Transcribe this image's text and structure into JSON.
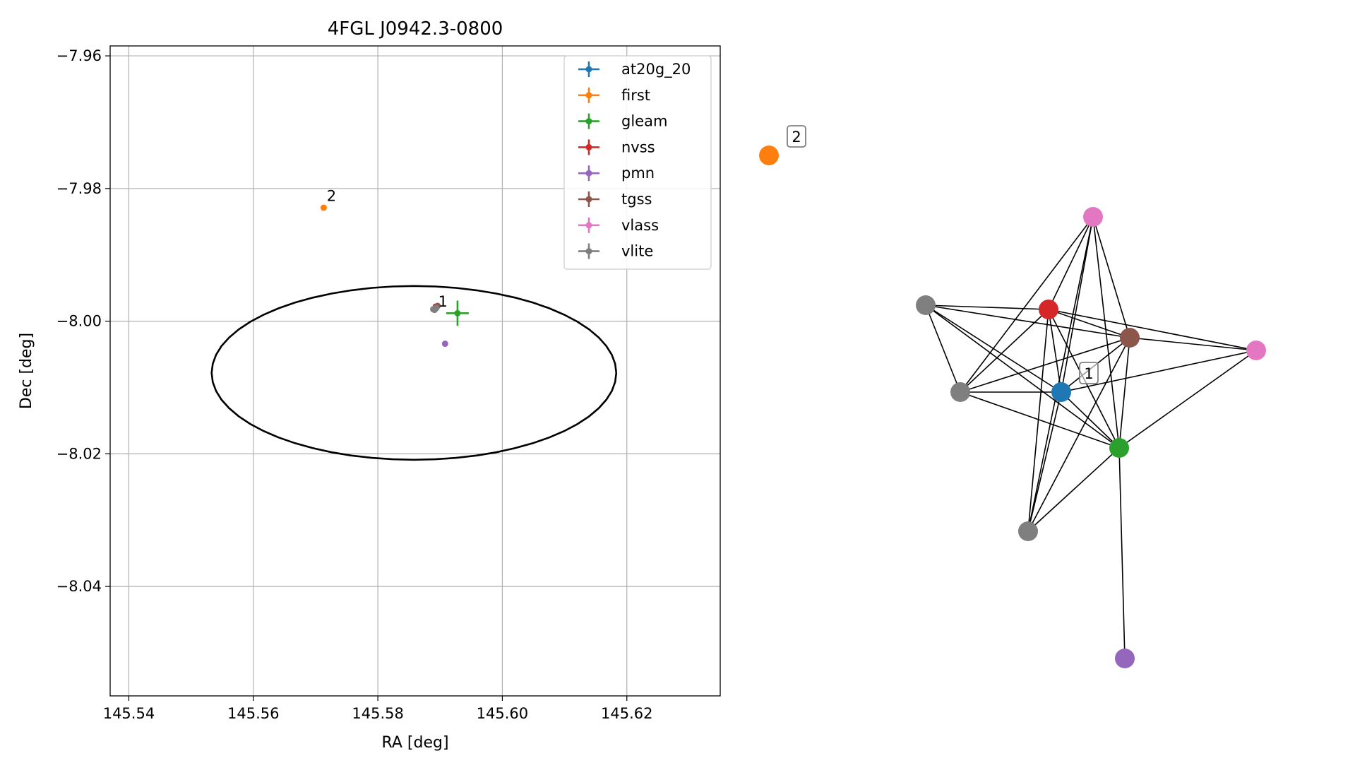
{
  "chart_data": [
    {
      "type": "scatter",
      "title": "4FGL J0942.3-0800",
      "xlabel": "RA [deg]",
      "ylabel": "Dec [deg]",
      "xlim": [
        145.537,
        145.635
      ],
      "ylim": [
        -8.0565,
        -7.9585
      ],
      "xticks": [
        145.54,
        145.56,
        145.58,
        145.6,
        145.62
      ],
      "xtick_labels": [
        "145.54",
        "145.56",
        "145.58",
        "145.60",
        "145.62"
      ],
      "yticks": [
        -7.96,
        -7.98,
        -8.0,
        -8.02,
        -8.04
      ],
      "ytick_labels": [
        "−7.96",
        "−7.98",
        "−8.00",
        "−8.02",
        "−8.04"
      ],
      "grid": true,
      "legend_position": "top-right",
      "localization_ellipse": {
        "center": [
          145.5858,
          -8.0078
        ],
        "ra_semi_axis": 0.0325,
        "dec_semi_axis": 0.0131
      },
      "series": [
        {
          "name": "at20g_20",
          "color": "#1f77b4",
          "points": [
            {
              "x": 145.5893,
              "y": -7.9981,
              "xerr": 0,
              "yerr": 0
            }
          ]
        },
        {
          "name": "first",
          "color": "#ff7f0e",
          "points": [
            {
              "x": 145.5713,
              "y": -7.9829,
              "xerr": 0,
              "yerr": 0
            }
          ]
        },
        {
          "name": "gleam",
          "color": "#2ca02c",
          "points": [
            {
              "x": 145.5928,
              "y": -7.9988,
              "xerr": 0.0018,
              "yerr": 0.0019
            }
          ]
        },
        {
          "name": "nvss",
          "color": "#d62728",
          "points": [
            {
              "x": 145.5893,
              "y": -7.9978,
              "xerr": 0,
              "yerr": 0
            }
          ]
        },
        {
          "name": "pmn",
          "color": "#9467bd",
          "points": [
            {
              "x": 145.5908,
              "y": -8.0034,
              "xerr": 0,
              "yerr": 0
            }
          ]
        },
        {
          "name": "tgss",
          "color": "#8c564b",
          "points": [
            {
              "x": 145.5896,
              "y": -7.9977,
              "xerr": 0,
              "yerr": 0
            }
          ]
        },
        {
          "name": "vlass",
          "color": "#e377c2",
          "points": [
            {
              "x": 145.5892,
              "y": -7.9981,
              "xerr": 0,
              "yerr": 0
            }
          ]
        },
        {
          "name": "vlite",
          "color": "#7f7f7f",
          "points": [
            {
              "x": 145.5889,
              "y": -7.9982,
              "xerr": 0,
              "yerr": 0
            },
            {
              "x": 145.5891,
              "y": -7.9983,
              "xerr": 0,
              "yerr": 0
            },
            {
              "x": 145.5894,
              "y": -7.998,
              "xerr": 0,
              "yerr": 0
            }
          ]
        }
      ],
      "annotations": [
        {
          "text": "1",
          "x": 145.5897,
          "y": -7.9978
        },
        {
          "text": "2",
          "x": 145.5718,
          "y": -7.9819
        }
      ]
    },
    {
      "type": "network",
      "nodes": [
        {
          "id": "n0",
          "color": "#ff7f0e"
        },
        {
          "id": "n1",
          "color": "#e377c2"
        },
        {
          "id": "n2",
          "color": "#7f7f7f"
        },
        {
          "id": "n3",
          "color": "#d62728"
        },
        {
          "id": "n4",
          "color": "#8c564b"
        },
        {
          "id": "n5",
          "color": "#e377c2"
        },
        {
          "id": "n6",
          "color": "#7f7f7f"
        },
        {
          "id": "n7",
          "color": "#1f77b4"
        },
        {
          "id": "n8",
          "color": "#2ca02c"
        },
        {
          "id": "n9",
          "color": "#7f7f7f"
        },
        {
          "id": "n10",
          "color": "#9467bd"
        }
      ],
      "edges": [
        [
          "n1",
          "n3"
        ],
        [
          "n1",
          "n4"
        ],
        [
          "n1",
          "n6"
        ],
        [
          "n1",
          "n7"
        ],
        [
          "n1",
          "n8"
        ],
        [
          "n1",
          "n9"
        ],
        [
          "n2",
          "n3"
        ],
        [
          "n2",
          "n4"
        ],
        [
          "n2",
          "n6"
        ],
        [
          "n2",
          "n7"
        ],
        [
          "n2",
          "n8"
        ],
        [
          "n3",
          "n4"
        ],
        [
          "n3",
          "n5"
        ],
        [
          "n3",
          "n6"
        ],
        [
          "n3",
          "n7"
        ],
        [
          "n3",
          "n8"
        ],
        [
          "n3",
          "n9"
        ],
        [
          "n4",
          "n5"
        ],
        [
          "n4",
          "n6"
        ],
        [
          "n4",
          "n7"
        ],
        [
          "n4",
          "n8"
        ],
        [
          "n4",
          "n9"
        ],
        [
          "n5",
          "n7"
        ],
        [
          "n5",
          "n8"
        ],
        [
          "n6",
          "n7"
        ],
        [
          "n6",
          "n8"
        ],
        [
          "n7",
          "n8"
        ],
        [
          "n7",
          "n9"
        ],
        [
          "n8",
          "n9"
        ],
        [
          "n8",
          "n10"
        ]
      ],
      "labels": [
        {
          "text": "2",
          "node": "n0"
        },
        {
          "text": "1",
          "node": "n7"
        }
      ]
    }
  ]
}
